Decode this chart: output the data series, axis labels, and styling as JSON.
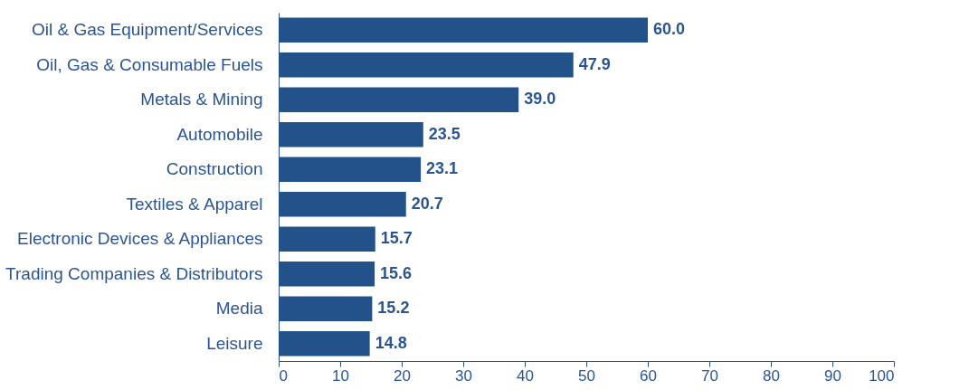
{
  "chart_data": {
    "type": "bar",
    "orientation": "horizontal",
    "categories": [
      "Oil & Gas Equipment/Services",
      "Oil, Gas & Consumable Fuels",
      "Metals & Mining",
      "Automobile",
      "Construction",
      "Textiles & Apparel",
      "Electronic Devices & Appliances",
      "Trading Companies & Distributors",
      "Media",
      "Leisure"
    ],
    "values": [
      60.0,
      47.9,
      39.0,
      23.5,
      23.1,
      20.7,
      15.7,
      15.6,
      15.2,
      14.8
    ],
    "value_labels": [
      "60.0",
      "47.9",
      "39.0",
      "23.5",
      "23.1",
      "20.7",
      "15.7",
      "15.6",
      "15.2",
      "14.8"
    ],
    "color": "#23528a",
    "xlim": [
      0,
      100
    ],
    "xticks": [
      0,
      10,
      20,
      30,
      40,
      50,
      60,
      70,
      80,
      90,
      100
    ],
    "grid": false
  }
}
